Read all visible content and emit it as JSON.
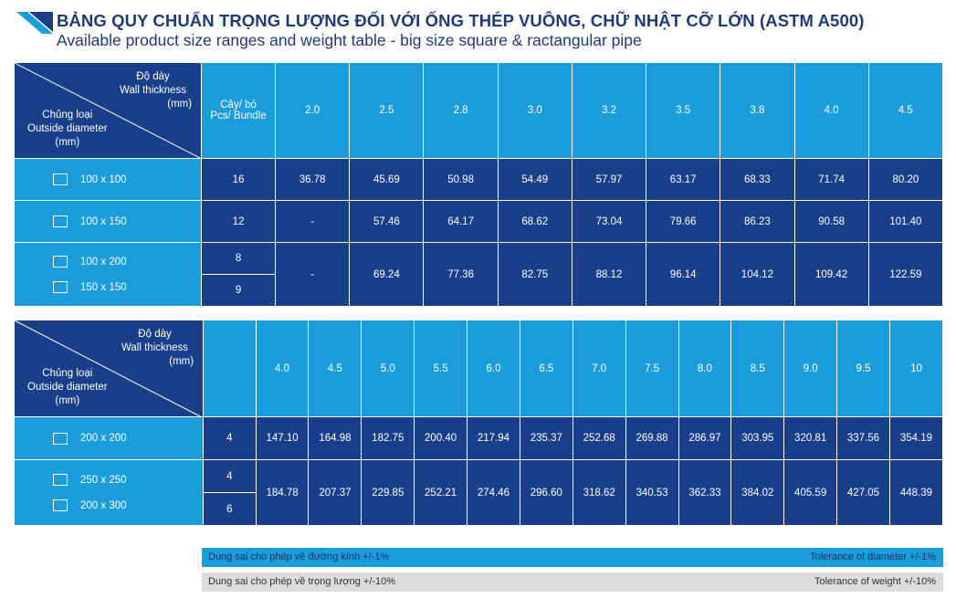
{
  "title": {
    "vn": "BẢNG QUY CHUẨN TRỌNG LƯỢNG ĐỐI VỚI ỐNG THÉP VUÔNG, CHỮ NHẬT CỠ LỚN (ASTM A500)",
    "en": "Available product size ranges and weight table - big size square & ractangular pipe"
  },
  "header_labels": {
    "thickness_vn": "Độ dày",
    "thickness_en": "Wall thickness",
    "thickness_unit": "(mm)",
    "type_vn": "Chủng loại",
    "type_en": "Outside diameter",
    "type_unit": "(mm)",
    "bundle_vn": "Cây/ bó",
    "bundle_en": "Pcs/ Bundle"
  },
  "table1": {
    "thicknesses": [
      "2.0",
      "2.5",
      "2.8",
      "3.0",
      "3.2",
      "3.5",
      "3.8",
      "4.0",
      "4.5"
    ],
    "rows": [
      {
        "sizes": [
          "100 x 100"
        ],
        "bundles": [
          "16"
        ],
        "weights": [
          "36.78",
          "45.69",
          "50.98",
          "54.49",
          "57.97",
          "63.17",
          "68.33",
          "71.74",
          "80.20"
        ]
      },
      {
        "sizes": [
          "100 x 150"
        ],
        "bundles": [
          "12"
        ],
        "weights": [
          "-",
          "57.46",
          "64.17",
          "68.62",
          "73.04",
          "79.66",
          "86.23",
          "90.58",
          "101.40"
        ]
      },
      {
        "sizes": [
          "100 x 200",
          "150 x 150"
        ],
        "bundles": [
          "8",
          "9"
        ],
        "weights": [
          "-",
          "69.24",
          "77.36",
          "82.75",
          "88.12",
          "96.14",
          "104.12",
          "109.42",
          "122.59"
        ]
      }
    ]
  },
  "table2": {
    "thicknesses": [
      "4.0",
      "4.5",
      "5.0",
      "5.5",
      "6.0",
      "6.5",
      "7.0",
      "7.5",
      "8.0",
      "8.5",
      "9.0",
      "9.5",
      "10"
    ],
    "rows": [
      {
        "sizes": [
          "200 x 200"
        ],
        "bundles": [
          "4"
        ],
        "weights": [
          "147.10",
          "164.98",
          "182.75",
          "200.40",
          "217.94",
          "235.37",
          "252.68",
          "269.88",
          "286.97",
          "303.95",
          "320.81",
          "337.56",
          "354.19"
        ]
      },
      {
        "sizes": [
          "250 x 250",
          "200 x 300"
        ],
        "bundles": [
          "4",
          "6"
        ],
        "weights": [
          "184.78",
          "207.37",
          "229.85",
          "252.21",
          "274.46",
          "296.60",
          "318.62",
          "340.53",
          "362.33",
          "384.02",
          "405.59",
          "427.05",
          "448.39"
        ]
      }
    ]
  },
  "tolerance": {
    "diameter_vn": "Dung sai cho phép về đường kính +/-1%",
    "diameter_en": "Tolerance of diameter +/-1%",
    "weight_vn": "Dung sai cho phép về trọng lượng +/-10%",
    "weight_en": "Tolerance of weight +/-10%"
  },
  "colors": {
    "navy": "#1a3f8a",
    "cyan": "#1c9ddb",
    "title": "#1e3a7a",
    "grey": "#dcdcdc"
  }
}
